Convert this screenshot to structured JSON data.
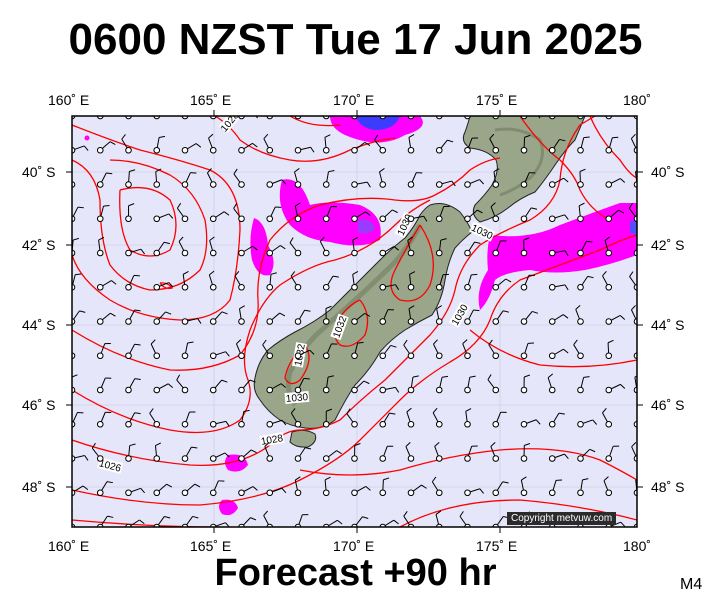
{
  "title": "0600 NZST Tue 17 Jun 2025",
  "footer": "Forecast +90 hr",
  "model_label": "M4",
  "copyright": "Copyright metvuw.com",
  "lon_labels": [
    "160˚ E",
    "165˚ E",
    "170˚ E",
    "175˚ E",
    "180˚"
  ],
  "lat_labels": [
    "40˚ S",
    "42˚ S",
    "44˚ S",
    "46˚ S",
    "48˚ S"
  ],
  "isobar_labels": [
    "1028",
    "1030",
    "1030",
    "1030",
    "1030",
    "1032",
    "1032",
    "1028",
    "1026"
  ],
  "colors": {
    "ocean": "#e6e6fa",
    "isobar": "#ff0000",
    "rain_magenta": "#ff00ff",
    "rain_blue": "#3c3cff",
    "land": "#9aa68a"
  },
  "map_extent": {
    "lon_min": 160,
    "lon_max": 180,
    "lat_min": -49.1,
    "lat_max": -38.4
  }
}
